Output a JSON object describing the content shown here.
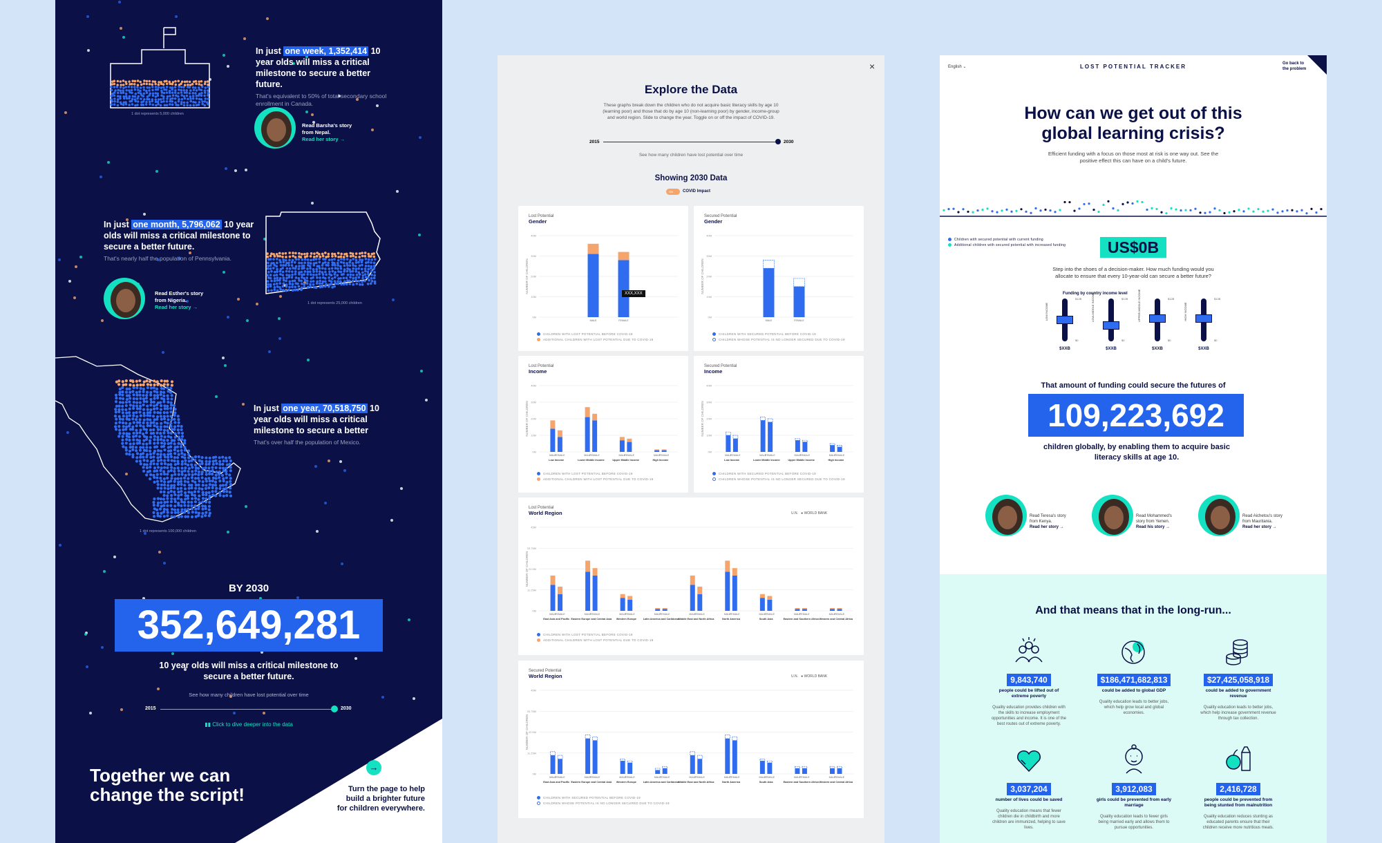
{
  "panel1": {
    "stories": [
      {
        "prefix": "In just ",
        "highlight": "one week, 1,352,414",
        "rest": "10 year olds will miss a critical milestone to secure a better future.",
        "sub": "That's equivalent to 50% of total secondary school enrollment in Canada.",
        "read": "Read Barsha's story from Nepal.",
        "link": "Read her story →",
        "dot_caption": "1 dot represents 5,000 children"
      },
      {
        "prefix": "In just ",
        "highlight": "one month, 5,796,062",
        "rest": "10 year olds will miss a critical milestone to secure a better future.",
        "sub": "That's nearly half the population of Pennsylvania.",
        "read": "Read Esther's story from Nigeria.",
        "link": "Read her story →",
        "dot_caption": "1 dot represents 25,000 children"
      },
      {
        "prefix": "In just ",
        "highlight": "one year, 70,518,750",
        "rest": "10 year olds will miss a critical milestone to secure a better",
        "sub": "That's over half the population of Mexico.",
        "dot_caption": "1 dot represents 100,000 children"
      }
    ],
    "by_label": "BY 2030",
    "big_number": "352,649,281",
    "big_sub": "10 year olds will miss a critical milestone to secure a better future.",
    "slider_caption": "See how many children have lost potential over time",
    "slider_start": "2015",
    "slider_end": "2030",
    "dive_link": "Click to dive deeper into the data",
    "cta_big": "Together we can change the script!",
    "cta_small": "Turn the page to help build a brighter future for children everywhere.",
    "colors": {
      "bg": "#0b1146",
      "accent": "#2463eb",
      "teal": "#14e0c2",
      "orange": "#f5a56b"
    }
  },
  "panel2": {
    "close": "×",
    "title": "Explore the Data",
    "intro": "These graphs break down the children who do not acquire basic literacy skills by age 10 (learning poor) and those that do by age 10 (non-learning poor) by gender, income-group and world region. Slide to change the year. Toggle on or off the impact of COVID-19.",
    "slider_start": "2015",
    "slider_end": "2030",
    "slider_caption": "See how many children have lost potential over time",
    "showing": "Showing 2030 Data",
    "toggle_state": "ON",
    "toggle_label": "COVID Impact",
    "tooltip": "XXX,XXX",
    "cards": {
      "lost_gender": {
        "kicker": "Lost Potential",
        "title": "Gender"
      },
      "sec_gender": {
        "kicker": "Secured Potential",
        "title": "Gender"
      },
      "lost_income": {
        "kicker": "Lost Potential",
        "title": "Income"
      },
      "sec_income": {
        "kicker": "Secured Potential",
        "title": "Income"
      },
      "lost_region": {
        "kicker": "Lost Potential",
        "title": "World Region"
      },
      "sec_region": {
        "kicker": "Secured Potential",
        "title": "World Region"
      }
    },
    "legend": {
      "lost_before": "CHILDREN WITH LOST POTENTIAL BEFORE COVID-19",
      "lost_additional": "ADDITIONAL CHILDREN WITH LOST POTENTIAL DUE TO COVID-19",
      "sec_before": "CHILDREN WITH SECURED POTENTIAL BEFORE COVID-19",
      "sec_lost": "CHILDREN WHOSE POTENTIAL IS NO LONGER SECURED DUE TO COVID-19"
    },
    "source_toggle": {
      "a": "U.N.",
      "b": "WORLD BANK"
    },
    "ylabel": "NUMBER OF CHILDREN",
    "sex_labels": [
      "MALE",
      "FEMALE"
    ],
    "income_groups": [
      "Low Income",
      "Lower Middle Income",
      "Upper Middle Income",
      "High Income"
    ],
    "regions": [
      "East Asia and Pacific",
      "Eastern Europe and Central Asia",
      "Western Europe",
      "Latin America and Caribbean",
      "Middle East and North Africa",
      "North America",
      "South Asia",
      "Eastern and Southern Africa",
      "Western and Central Africa"
    ]
  },
  "chart_data": [
    {
      "type": "bar",
      "title": "Gender",
      "categories": [
        "MALE",
        "FEMALE"
      ],
      "series": [
        {
          "name": "CHILDREN WITH LOST POTENTIAL BEFORE COVID-19",
          "values": [
            31,
            28
          ]
        },
        {
          "name": "ADDITIONAL CHILDREN WITH LOST POTENTIAL DUE TO COVID-19",
          "values": [
            5,
            4
          ]
        }
      ],
      "ylim": [
        0,
        40
      ]
    },
    {
      "type": "bar",
      "title": "Gender",
      "categories": [
        "MALE",
        "FEMALE"
      ],
      "series": [
        {
          "name": "CHILDREN WITH SECURED POTENTIAL BEFORE COVID-19",
          "values": [
            24,
            15
          ]
        },
        {
          "name": "CHILDREN WHOSE POTENTIAL IS NO LONGER SECURED DUE TO COVID-19",
          "values": [
            4,
            4
          ]
        }
      ],
      "ylim": [
        0,
        40
      ]
    },
    {
      "type": "bar",
      "title": "Income",
      "categories": [
        "MALE",
        "FEMALE",
        "MALE",
        "FEMALE",
        "MALE",
        "FEMALE",
        "MALE",
        "FEMALE"
      ],
      "series": [
        {
          "name": "CHILDREN WITH LOST POTENTIAL BEFORE COVID-19",
          "values": [
            14,
            9,
            21,
            19,
            7,
            6,
            1,
            1
          ]
        },
        {
          "name": "ADDITIONAL CHILDREN WITH LOST POTENTIAL DUE TO COVID-19",
          "values": [
            5,
            4,
            6,
            4,
            2,
            2,
            0.5,
            0.5
          ]
        }
      ],
      "ylim": [
        0,
        40
      ]
    },
    {
      "type": "bar",
      "title": "Income",
      "categories": [
        "MALE",
        "FEMALE",
        "MALE",
        "FEMALE",
        "MALE",
        "FEMALE",
        "MALE",
        "FEMALE"
      ],
      "series": [
        {
          "name": "CHILDREN WITH SECURED POTENTIAL BEFORE COVID-19",
          "values": [
            10,
            8,
            19,
            18,
            7,
            6,
            4,
            3
          ]
        },
        {
          "name": "CHILDREN WHOSE POTENTIAL IS NO LONGER SECURED DUE TO COVID-19",
          "values": [
            2,
            2,
            2,
            2,
            1,
            1,
            1,
            1
          ]
        }
      ],
      "ylim": [
        0,
        40
      ]
    },
    {
      "type": "bar",
      "title": "World Region",
      "categories": [
        "MALE",
        "FEMALE",
        "MALE",
        "FEMALE",
        "MALE",
        "FEMALE",
        "MALE",
        "FEMALE",
        "MALE",
        "FEMALE",
        "MALE",
        "FEMALE",
        "MALE",
        "FEMALE",
        "MALE",
        "FEMALE",
        "MALE",
        "FEMALE"
      ],
      "series": [
        {
          "name": "CHILDREN WITH LOST POTENTIAL BEFORE COVID-19",
          "values": [
            14,
            9,
            21,
            19,
            7,
            6,
            1,
            1,
            14,
            9,
            21,
            19,
            7,
            6,
            1,
            1,
            1,
            1
          ]
        },
        {
          "name": "ADDITIONAL CHILDREN WITH LOST POTENTIAL DUE TO COVID-19",
          "values": [
            5,
            4,
            6,
            4,
            2,
            2,
            0.5,
            0.5,
            5,
            4,
            6,
            4,
            2,
            2,
            0.5,
            0.5,
            0.5,
            0.5
          ]
        }
      ],
      "ylim": [
        0,
        45
      ]
    },
    {
      "type": "bar",
      "title": "World Region",
      "categories": [
        "MALE",
        "FEMALE",
        "MALE",
        "FEMALE",
        "MALE",
        "FEMALE",
        "MALE",
        "FEMALE",
        "MALE",
        "FEMALE",
        "MALE",
        "FEMALE",
        "MALE",
        "FEMALE",
        "MALE",
        "FEMALE",
        "MALE",
        "FEMALE"
      ],
      "series": [
        {
          "name": "CHILDREN WITH SECURED POTENTIAL BEFORE COVID-19",
          "values": [
            10,
            8,
            19,
            18,
            7,
            6,
            2,
            3,
            10,
            8,
            19,
            18,
            7,
            6,
            3,
            3,
            3,
            3
          ]
        },
        {
          "name": "CHILDREN WHOSE POTENTIAL IS NO LONGER SECURED DUE TO COVID-19",
          "values": [
            2,
            2,
            2,
            2,
            1,
            1,
            1,
            1,
            2,
            2,
            2,
            2,
            1,
            1,
            1,
            1,
            1,
            1
          ]
        }
      ],
      "ylim": [
        0,
        45
      ]
    }
  ],
  "panel3": {
    "lang": "English",
    "brand": "LOST POTENTIAL TRACKER",
    "back": "Go back to the problem",
    "title": "How can we get out of this global learning crisis?",
    "subtitle": "Efficient funding with a focus on those most at risk is one way out. See the positive effect this can have on a child's future.",
    "legend_current": "Children with secured potential with current funding",
    "legend_additional": "Additional children with secured potential with increased funding",
    "funding_value": "US$0B",
    "prompt": "Step into the shoes of a decision-maker. How much funding would you allocate to ensure that every 10-year-old can secure a better future?",
    "funding_label": "Funding by country income level",
    "sliders": [
      {
        "name": "LOW INCOME",
        "value": "$XXB",
        "max": "$12B",
        "min": "$0",
        "level": 0.5
      },
      {
        "name": "LOW-MIDDLE INCOME",
        "value": "$XXB",
        "max": "$12B",
        "min": "$0",
        "level": 0.35
      },
      {
        "name": "UPPER-MIDDLE INCOME",
        "value": "$XXB",
        "max": "$12B",
        "min": "$0",
        "level": 0.55
      },
      {
        "name": "HIGH INCOME",
        "value": "$XXB",
        "max": "$12B",
        "min": "$0",
        "level": 0.55
      }
    ],
    "futures_intro": "That amount of funding could secure the futures of",
    "big_number": "109,223,692",
    "big_sub": "children globally, by enabling them to acquire basic literacy skills at age 10.",
    "people": [
      {
        "read": "Read Teresa's story from Kenya.",
        "link": "Read her story →"
      },
      {
        "read": "Read Mohammed's story from Yemen.",
        "link": "Read his story →"
      },
      {
        "read": "Read Aichetou's story from Mauritania.",
        "link": "Read her story →"
      }
    ],
    "longrun_title": "And that means that in the long-run...",
    "stats": [
      {
        "icon": "people-icon",
        "value": "9,843,740",
        "label": "people could be lifted out of extreme poverty",
        "desc": "Quality education provides children with the skills to increase employment opportunities and income. It is one of the best routes out of extreme poverty."
      },
      {
        "icon": "globe-icon",
        "value": "$186,471,682,813",
        "label": "could be added to global GDP",
        "desc": "Quality education leads to better jobs, which help grow local and global economies."
      },
      {
        "icon": "coins-icon",
        "value": "$27,425,058,918",
        "label": "could be added to government revenue",
        "desc": "Quality education leads to better jobs, which help increase government revenue through tax collection."
      },
      {
        "icon": "heart-icon",
        "value": "3,037,204",
        "label": "number of lives could be saved",
        "desc": "Quality education means that fewer children die in childbirth and more children are immunized, helping to save lives."
      },
      {
        "icon": "girl-icon",
        "value": "3,912,083",
        "label": "girls could be prevented from early marriage",
        "desc": "Quality education leads to fewer girls being married early and allows them to pursue opportunities."
      },
      {
        "icon": "food-icon",
        "value": "2,416,728",
        "label": "people could be prevented from being stunted from malnutrition",
        "desc": "Quality education reduces stunting as educated parents ensure that their children receive more nutritious meals."
      }
    ]
  }
}
